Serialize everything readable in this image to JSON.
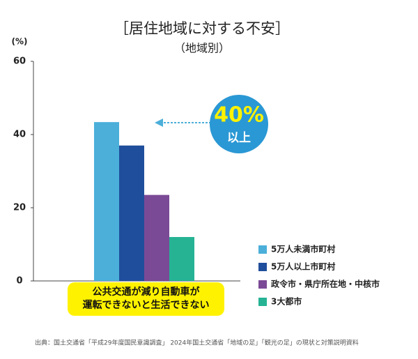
{
  "chart_data": {
    "type": "bar",
    "title": "［居住地域に対する不安］",
    "subtitle": "（地域別）",
    "y_unit": "(%)",
    "categories": [
      "公共交通が減り自動車が\n運転できないと生活できない"
    ],
    "series": [
      {
        "name": "5万人未満市町村",
        "color": "#4bafd9",
        "values": [
          43.4
        ]
      },
      {
        "name": "5万人以上市町村",
        "color": "#1f4e9c",
        "values": [
          37
        ]
      },
      {
        "name": "政令市・県庁所在地・中核市",
        "color": "#7b4a96",
        "values": [
          23.5
        ]
      },
      {
        "name": "3大都市",
        "color": "#26b394",
        "values": [
          12
        ]
      }
    ],
    "ylim": [
      0,
      60
    ],
    "yticks": [
      0,
      20,
      40,
      60
    ],
    "grid": false,
    "legend": "bottom-right",
    "annotation": {
      "text": "40%",
      "sub": "以上"
    },
    "source": "出典：国土交通省「平成29年度国民意識調査」 2024年国土交通省「地域の足」「観光の足」の現状と対策説明資料"
  }
}
